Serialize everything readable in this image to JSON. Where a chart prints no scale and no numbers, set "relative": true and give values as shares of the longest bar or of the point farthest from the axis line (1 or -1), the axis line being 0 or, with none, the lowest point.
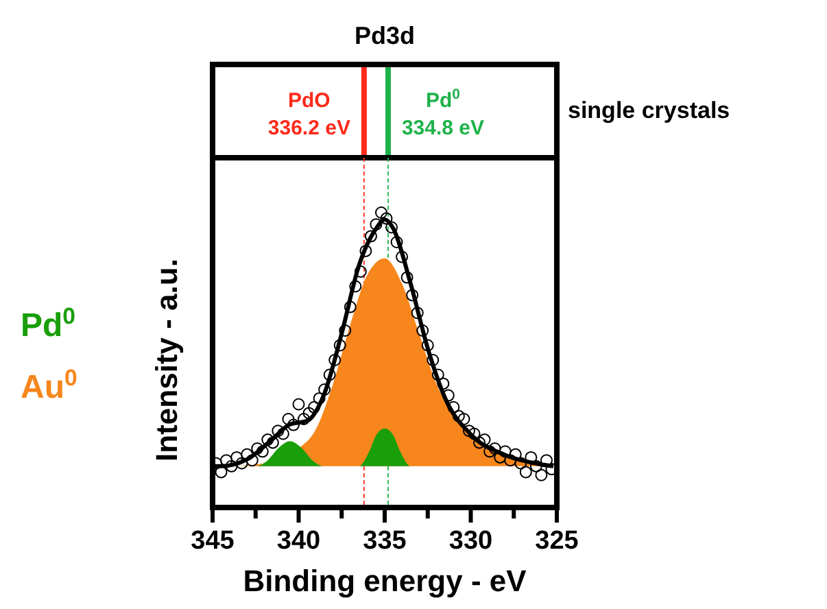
{
  "chart_data": {
    "type": "area",
    "title": "Pd3d",
    "xlabel": "Binding energy - eV",
    "ylabel": "Intensity - a.u.",
    "relative": true,
    "xlim": [
      345,
      325
    ],
    "xticks": [
      345,
      {
        "value": 342.5,
        "label": null
      },
      340,
      {
        "value": 337.5,
        "label": null
      },
      335,
      {
        "value": 332.5,
        "label": null
      },
      330,
      {
        "value": 327.5,
        "label": null
      },
      325
    ],
    "legend": "left",
    "annotations": [
      "single crystals"
    ],
    "ref_lines": [
      {
        "axis": "x",
        "value": 336.2,
        "label": "PdO 336.2 eV",
        "color": "#ff2a1a",
        "line_style": "dashed"
      },
      {
        "axis": "x",
        "value": 334.8,
        "label": "Pd$^{0}$ 334.8 eV",
        "color": "#1fb24a",
        "line_style": "dashed"
      }
    ],
    "series": [
      {
        "name": "Au$^{0}$",
        "color": "#f7861c",
        "x": [
          345,
          344,
          342,
          340,
          339,
          338,
          337,
          336,
          335,
          334,
          333,
          332,
          331,
          330,
          328,
          326,
          325.2
        ],
        "values": [
          0.14,
          0.14,
          0.15,
          0.2,
          0.265,
          0.42,
          0.62,
          0.79,
          0.845,
          0.76,
          0.59,
          0.42,
          0.31,
          0.24,
          0.18,
          0.15,
          0.14
        ]
      },
      {
        "name": "Pd$^{0}$",
        "color": "#1a9e0a",
        "x": [
          345,
          342.5,
          341.8,
          341.2,
          340.5,
          339.8,
          339.2,
          338.5,
          336.5,
          335.9,
          335.5,
          335,
          334.5,
          334.1,
          333.5,
          325.2
        ],
        "values": [
          0.14,
          0.14,
          0.16,
          0.2,
          0.225,
          0.2,
          0.16,
          0.14,
          0.14,
          0.19,
          0.245,
          0.268,
          0.245,
          0.19,
          0.14,
          0.14
        ]
      },
      {
        "type": "line",
        "color": "#000000",
        "x": [
          345,
          344.5,
          343,
          341.5,
          340.5,
          339.5,
          338.5,
          337.5,
          336.5,
          335.5,
          335,
          334.5,
          333.5,
          332.5,
          331.5,
          330,
          328,
          326,
          325.2
        ],
        "values": [
          0.14,
          0.14,
          0.163,
          0.233,
          0.282,
          0.294,
          0.387,
          0.59,
          0.82,
          0.946,
          0.977,
          0.946,
          0.76,
          0.54,
          0.372,
          0.248,
          0.178,
          0.147,
          0.14
        ]
      },
      {
        "type": "scatter",
        "color": "#000000",
        "marker": "circle",
        "x": [
          344.8,
          344.5,
          344.2,
          343.9,
          343.6,
          343.3,
          343.0,
          342.7,
          342.4,
          342.1,
          341.8,
          341.5,
          341.2,
          340.9,
          340.6,
          340.3,
          340.0,
          339.7,
          339.4,
          339.1,
          338.8,
          338.5,
          338.2,
          337.9,
          337.6,
          337.3,
          337.0,
          336.7,
          336.4,
          336.1,
          335.8,
          335.5,
          335.2,
          334.9,
          334.6,
          334.3,
          334.0,
          333.7,
          333.4,
          333.1,
          332.8,
          332.5,
          332.2,
          331.9,
          331.6,
          331.3,
          331.0,
          330.7,
          330.4,
          330.1,
          329.8,
          329.5,
          329.2,
          328.9,
          328.6,
          328.3,
          328.0,
          327.7,
          327.4,
          327.1,
          326.8,
          326.5,
          326.2,
          325.9,
          325.6,
          325.3
        ],
        "values": [
          0.15,
          0.12,
          0.16,
          0.14,
          0.17,
          0.15,
          0.18,
          0.16,
          0.2,
          0.19,
          0.23,
          0.22,
          0.26,
          0.25,
          0.3,
          0.28,
          0.35,
          0.3,
          0.32,
          0.34,
          0.37,
          0.4,
          0.45,
          0.5,
          0.55,
          0.6,
          0.68,
          0.75,
          0.8,
          0.87,
          0.92,
          0.96,
          1.0,
          0.98,
          0.95,
          0.9,
          0.85,
          0.78,
          0.72,
          0.66,
          0.6,
          0.55,
          0.5,
          0.45,
          0.42,
          0.38,
          0.34,
          0.31,
          0.3,
          0.26,
          0.25,
          0.22,
          0.23,
          0.19,
          0.2,
          0.17,
          0.19,
          0.16,
          0.18,
          0.15,
          0.12,
          0.17,
          0.14,
          0.11,
          0.16,
          0.13
        ]
      }
    ]
  }
}
